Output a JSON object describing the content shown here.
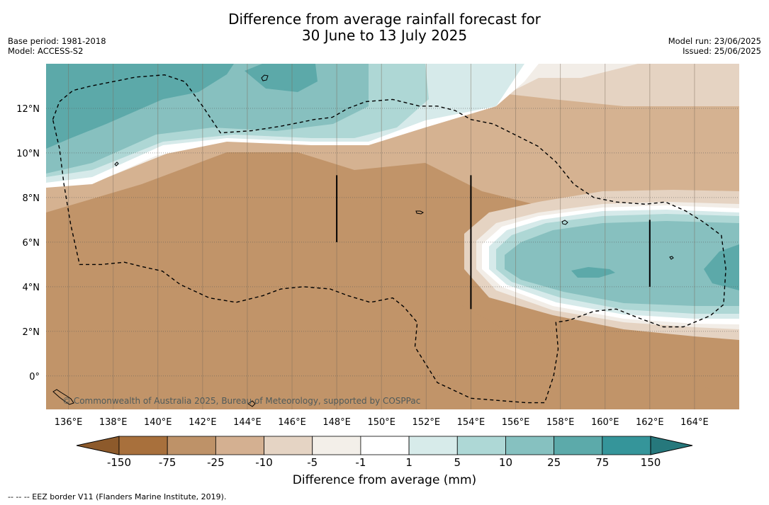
{
  "title": {
    "line1": "Difference from average rainfall forecast for",
    "line2": "30 June to 13 July 2025"
  },
  "meta_left": {
    "base_period": "Base period: 1981-2018",
    "model": "Model: ACCESS-S2"
  },
  "meta_right": {
    "model_run": "Model run: 23/06/2025",
    "issued": "Issued: 25/06/2025"
  },
  "map": {
    "lon_range": [
      135,
      166
    ],
    "lat_range": [
      -1.5,
      14
    ],
    "x_ticks": [
      {
        "v": 136,
        "label": "136°E"
      },
      {
        "v": 138,
        "label": "138°E"
      },
      {
        "v": 140,
        "label": "140°E"
      },
      {
        "v": 142,
        "label": "142°E"
      },
      {
        "v": 144,
        "label": "144°E"
      },
      {
        "v": 146,
        "label": "146°E"
      },
      {
        "v": 148,
        "label": "148°E"
      },
      {
        "v": 150,
        "label": "150°E"
      },
      {
        "v": 152,
        "label": "152°E"
      },
      {
        "v": 154,
        "label": "154°E"
      },
      {
        "v": 156,
        "label": "156°E"
      },
      {
        "v": 158,
        "label": "158°E"
      },
      {
        "v": 160,
        "label": "160°E"
      },
      {
        "v": 162,
        "label": "162°E"
      },
      {
        "v": 164,
        "label": "164°E"
      }
    ],
    "y_ticks": [
      {
        "v": 0,
        "label": "0°"
      },
      {
        "v": 2,
        "label": "2°N"
      },
      {
        "v": 4,
        "label": "4°N"
      },
      {
        "v": 6,
        "label": "6°N"
      },
      {
        "v": 8,
        "label": "8°N"
      },
      {
        "v": 10,
        "label": "10°N"
      },
      {
        "v": 12,
        "label": "12°N"
      }
    ],
    "gridlines": true,
    "copyright": "© Commonwealth of Australia 2025, Bureau of Meteorology, supported by COSPPac",
    "eez_border": [
      [
        135.3,
        11.5
      ],
      [
        135.6,
        12.3
      ],
      [
        136.2,
        12.8
      ],
      [
        137.0,
        13.0
      ],
      [
        138.0,
        13.2
      ],
      [
        139.0,
        13.4
      ],
      [
        140.3,
        13.5
      ],
      [
        141.2,
        13.2
      ],
      [
        142.0,
        12.1
      ],
      [
        142.8,
        10.9
      ],
      [
        144.2,
        11.0
      ],
      [
        145.5,
        11.2
      ],
      [
        147.0,
        11.5
      ],
      [
        147.8,
        11.6
      ],
      [
        148.5,
        12.0
      ],
      [
        149.3,
        12.3
      ],
      [
        150.5,
        12.4
      ],
      [
        151.7,
        12.1
      ],
      [
        152.5,
        12.1
      ],
      [
        153.3,
        11.9
      ],
      [
        154.0,
        11.5
      ],
      [
        155.0,
        11.3
      ],
      [
        156.0,
        10.8
      ],
      [
        157.0,
        10.3
      ],
      [
        157.8,
        9.6
      ],
      [
        158.6,
        8.6
      ],
      [
        159.5,
        8.0
      ],
      [
        160.5,
        7.8
      ],
      [
        161.8,
        7.7
      ],
      [
        162.7,
        7.8
      ],
      [
        163.6,
        7.4
      ],
      [
        164.4,
        6.9
      ],
      [
        165.2,
        6.3
      ],
      [
        165.4,
        4.8
      ],
      [
        165.3,
        3.2
      ],
      [
        164.7,
        2.7
      ],
      [
        163.5,
        2.2
      ],
      [
        162.6,
        2.2
      ],
      [
        161.5,
        2.6
      ],
      [
        160.5,
        3.0
      ],
      [
        159.5,
        2.9
      ],
      [
        158.4,
        2.5
      ],
      [
        157.8,
        2.4
      ],
      [
        157.9,
        1.2
      ],
      [
        157.7,
        0.0
      ],
      [
        157.3,
        -1.2
      ],
      [
        156.5,
        -1.2
      ],
      [
        154.0,
        -1.0
      ],
      [
        152.5,
        -0.3
      ],
      [
        151.5,
        1.3
      ],
      [
        151.6,
        2.4
      ],
      [
        151.0,
        3.1
      ],
      [
        150.5,
        3.5
      ],
      [
        149.5,
        3.3
      ],
      [
        148.5,
        3.6
      ],
      [
        147.7,
        3.9
      ],
      [
        146.5,
        4.0
      ],
      [
        145.5,
        3.9
      ],
      [
        144.7,
        3.6
      ],
      [
        143.5,
        3.3
      ],
      [
        142.3,
        3.5
      ],
      [
        141.0,
        4.1
      ],
      [
        140.2,
        4.7
      ],
      [
        139.3,
        4.9
      ],
      [
        138.5,
        5.1
      ],
      [
        137.5,
        5.0
      ],
      [
        136.5,
        5.0
      ],
      [
        136.1,
        6.8
      ],
      [
        135.8,
        8.6
      ],
      [
        135.6,
        10.2
      ],
      [
        135.3,
        11.5
      ]
    ],
    "transects": [
      {
        "lon": 148.0,
        "lat": [
          6.0,
          9.0
        ]
      },
      {
        "lon": 154.0,
        "lat": [
          3.0,
          9.0
        ]
      },
      {
        "lon": 162.0,
        "lat": [
          4.0,
          7.0
        ]
      }
    ]
  },
  "colorbar": {
    "tick_labels": [
      "-150",
      "-75",
      "-25",
      "-10",
      "-5",
      "-1",
      "1",
      "5",
      "10",
      "25",
      "75",
      "150"
    ],
    "colors": [
      "#a8703c",
      "#be9268",
      "#d4b091",
      "#e5d4c4",
      "#f3efe9",
      "#ffffff",
      "#d7ebea",
      "#aed8d6",
      "#86c1c0",
      "#5caaaa",
      "#35959a"
    ],
    "extend_low_color": "#8d5a2b",
    "extend_high_color": "#26787c",
    "label": "Difference from average (mm)"
  },
  "footnote": "--  --  -- EEZ border V11 (Flanders Marine Institute, 2019)."
}
